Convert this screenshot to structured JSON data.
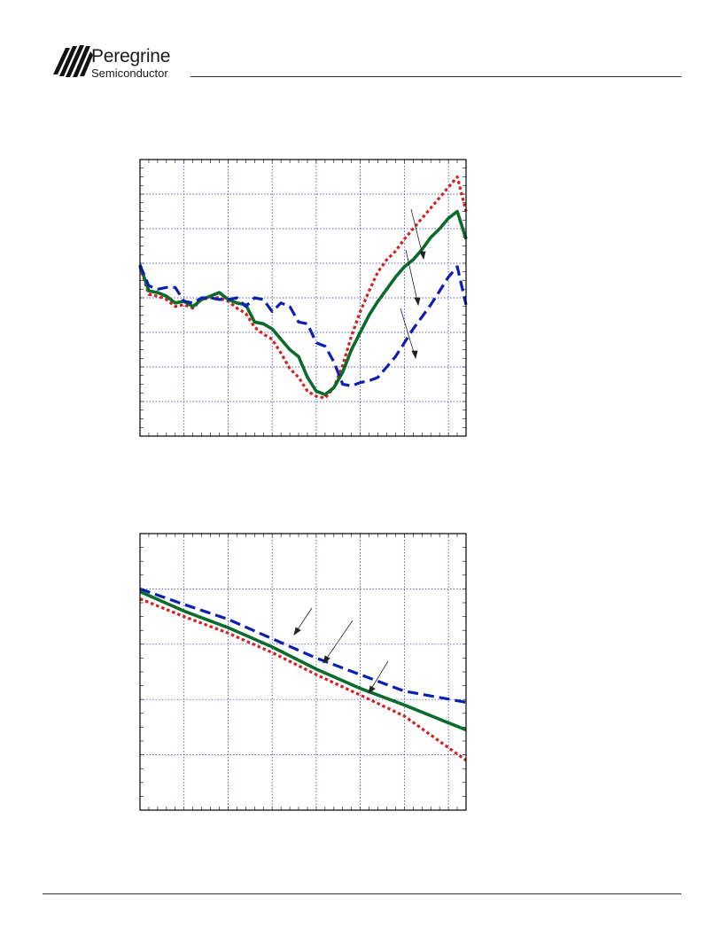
{
  "header": {
    "brand_name": "Peregrine",
    "brand_sub": "Semiconductor"
  },
  "colors": {
    "series_red": "#d42222",
    "series_green": "#0b6b2a",
    "series_blue": "#0b1fb3",
    "grid": "#2a2aa8",
    "frame": "#000000"
  },
  "chart_data": [
    {
      "type": "line",
      "grid": true,
      "xlim": [
        0,
        37
      ],
      "ylim": [
        0,
        8
      ],
      "x_major_divisions": 7.4,
      "y_major_divisions": 8,
      "series": [
        {
          "color": "#d42222",
          "style": "dotted",
          "x": [
            0,
            1,
            2,
            3,
            4,
            5,
            6,
            7,
            8,
            9,
            10,
            11,
            12,
            13,
            14,
            15,
            16,
            17,
            18,
            19,
            20,
            21,
            22,
            23,
            24,
            25,
            26,
            27,
            28,
            29,
            30,
            31,
            32,
            33,
            34,
            35,
            36,
            37
          ],
          "y": [
            4.9,
            4.1,
            4.05,
            3.95,
            3.75,
            3.8,
            3.7,
            3.95,
            4.0,
            4.0,
            3.9,
            3.7,
            3.55,
            3.15,
            2.95,
            2.8,
            2.4,
            1.95,
            1.7,
            1.3,
            1.15,
            1.1,
            1.4,
            2.05,
            2.9,
            3.6,
            4.2,
            4.75,
            5.1,
            5.35,
            5.7,
            6.0,
            6.3,
            6.6,
            6.9,
            7.2,
            7.5,
            6.5
          ]
        },
        {
          "color": "#0b6b2a",
          "style": "solid",
          "x": [
            0,
            1,
            2,
            3,
            4,
            5,
            6,
            7,
            8,
            9,
            10,
            11,
            12,
            13,
            14,
            15,
            16,
            17,
            18,
            19,
            20,
            21,
            22,
            23,
            24,
            25,
            26,
            27,
            28,
            29,
            30,
            31,
            32,
            33,
            34,
            35,
            36,
            37
          ],
          "y": [
            4.95,
            4.2,
            4.15,
            4.05,
            3.85,
            3.9,
            3.75,
            3.95,
            4.05,
            4.15,
            3.95,
            3.85,
            3.8,
            3.3,
            3.25,
            3.1,
            2.8,
            2.5,
            2.3,
            1.7,
            1.3,
            1.2,
            1.4,
            1.85,
            2.5,
            3.0,
            3.5,
            3.9,
            4.25,
            4.6,
            4.9,
            5.1,
            5.4,
            5.75,
            6.0,
            6.3,
            6.5,
            5.7
          ]
        },
        {
          "color": "#0b1fb3",
          "style": "dashed",
          "x": [
            0,
            1,
            2,
            3,
            4,
            5,
            6,
            7,
            8,
            9,
            10,
            11,
            12,
            13,
            14,
            15,
            16,
            17,
            18,
            19,
            20,
            21,
            22,
            23,
            24,
            25,
            26,
            27,
            28,
            29,
            30,
            31,
            32,
            33,
            34,
            35,
            36,
            37
          ],
          "y": [
            4.95,
            4.35,
            4.25,
            4.3,
            4.3,
            3.9,
            3.85,
            4.0,
            4.0,
            3.95,
            3.95,
            4.0,
            3.75,
            4.0,
            3.95,
            3.6,
            3.85,
            3.75,
            3.3,
            3.25,
            2.7,
            2.6,
            2.15,
            1.5,
            1.45,
            1.55,
            1.6,
            1.7,
            2.0,
            2.3,
            2.7,
            3.1,
            3.45,
            3.8,
            4.2,
            4.6,
            4.9,
            3.8
          ]
        }
      ]
    },
    {
      "type": "line",
      "grid": true,
      "xlim": [
        0,
        37
      ],
      "ylim": [
        0,
        5
      ],
      "x_major_divisions": 7.4,
      "y_major_divisions": 5,
      "series": [
        {
          "color": "#0b1fb3",
          "style": "dashed",
          "x": [
            0,
            5,
            10,
            15,
            20,
            25,
            30,
            37
          ],
          "y": [
            4.0,
            3.72,
            3.45,
            3.1,
            2.75,
            2.45,
            2.15,
            1.95
          ]
        },
        {
          "color": "#0b6b2a",
          "style": "solid",
          "x": [
            0,
            5,
            10,
            15,
            20,
            25,
            30,
            37
          ],
          "y": [
            3.95,
            3.6,
            3.3,
            2.95,
            2.55,
            2.2,
            1.9,
            1.45
          ]
        },
        {
          "color": "#d42222",
          "style": "dotted",
          "x": [
            0,
            5,
            10,
            15,
            20,
            25,
            30,
            37
          ],
          "y": [
            3.82,
            3.5,
            3.2,
            2.85,
            2.45,
            2.08,
            1.7,
            0.9
          ]
        }
      ]
    }
  ]
}
